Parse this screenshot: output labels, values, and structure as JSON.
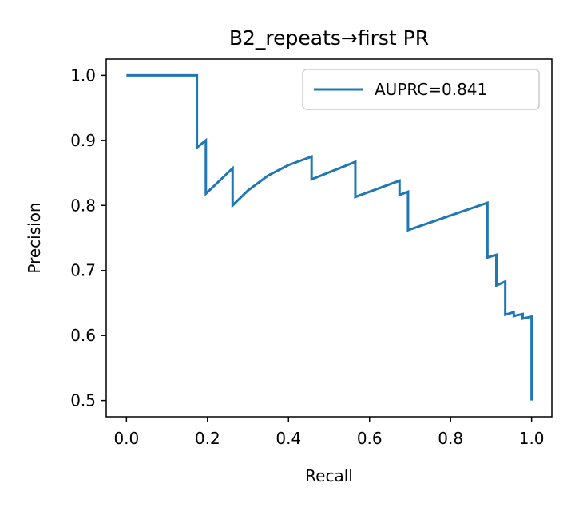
{
  "chart_data": {
    "type": "line",
    "title": "B2_repeats→first PR",
    "xlabel": "Recall",
    "ylabel": "Precision",
    "xlim": [
      -0.05,
      1.05
    ],
    "ylim": [
      0.475,
      1.025
    ],
    "xticks": [
      0.0,
      0.2,
      0.4,
      0.6,
      0.8,
      1.0
    ],
    "yticks": [
      0.5,
      0.6,
      0.7,
      0.8,
      0.9,
      1.0
    ],
    "xtick_labels": [
      "0.0",
      "0.2",
      "0.4",
      "0.6",
      "0.8",
      "1.0"
    ],
    "ytick_labels": [
      "0.5",
      "0.6",
      "0.7",
      "0.8",
      "0.9",
      "1.0"
    ],
    "grid": false,
    "legend_position": "top-right",
    "series": [
      {
        "name": "AUPRC=0.841",
        "color": "#1f77b4",
        "x": [
          0.0,
          0.174,
          0.174,
          0.196,
          0.196,
          0.262,
          0.262,
          0.3,
          0.35,
          0.4,
          0.457,
          0.457,
          0.565,
          0.565,
          0.674,
          0.674,
          0.695,
          0.695,
          0.891,
          0.891,
          0.913,
          0.913,
          0.935,
          0.935,
          0.956,
          0.956,
          0.978,
          0.978,
          1.0,
          1.0
        ],
        "y": [
          1.0,
          1.0,
          0.889,
          0.9,
          0.818,
          0.857,
          0.8,
          0.823,
          0.846,
          0.862,
          0.875,
          0.84,
          0.867,
          0.813,
          0.838,
          0.816,
          0.821,
          0.762,
          0.804,
          0.72,
          0.724,
          0.677,
          0.683,
          0.632,
          0.636,
          0.63,
          0.633,
          0.626,
          0.629,
          0.5
        ]
      }
    ]
  }
}
